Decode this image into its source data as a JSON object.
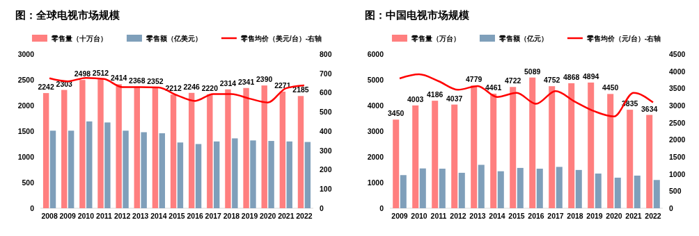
{
  "chart_data": [
    {
      "type": "bar",
      "title": "图：全球电视市场规模",
      "categories": [
        "2008",
        "2009",
        "2010",
        "2011",
        "2012",
        "2013",
        "2014",
        "2015",
        "2016",
        "2017",
        "2018",
        "2019",
        "2020",
        "2021",
        "2022"
      ],
      "legend": "top",
      "ylim": [
        0,
        3000
      ],
      "yticks": [
        0,
        500,
        1000,
        1500,
        2000,
        2500,
        3000
      ],
      "y2lim": [
        0,
        800
      ],
      "y2ticks": [
        0,
        100,
        200,
        300,
        400,
        500,
        600,
        700,
        800
      ],
      "series": [
        {
          "name": "零售量（十万台）",
          "color": "#ff7f7f",
          "values": [
            2242,
            2303,
            2498,
            2512,
            2414,
            2368,
            2352,
            2212,
            2246,
            2220,
            2314,
            2341,
            2390,
            2271,
            2185
          ],
          "value_labels": [
            "2242",
            "2303",
            "2498",
            "2512",
            "2414",
            "2368",
            "2352",
            "2212",
            "2246",
            "2220",
            "2314",
            "2341",
            "2390",
            "2271",
            "2185"
          ]
        },
        {
          "name": "零售额（亿美元）",
          "color": "#7f9fba",
          "values": [
            1510,
            1510,
            1690,
            1670,
            1510,
            1480,
            1460,
            1280,
            1250,
            1300,
            1360,
            1320,
            1310,
            1300,
            1290
          ]
        },
        {
          "name": "零售均价（美元/台）-右轴",
          "type": "line",
          "axis": "y2",
          "color": "#ff0000",
          "marker": "none",
          "values": [
            675,
            659,
            677,
            671,
            629,
            629,
            627,
            587,
            557,
            593,
            593,
            569,
            549,
            623,
            638
          ]
        }
      ]
    },
    {
      "type": "bar",
      "title": "图：中国电视市场规模",
      "categories": [
        "2009",
        "2010",
        "2011",
        "2012",
        "2013",
        "2014",
        "2015",
        "2016",
        "2017",
        "2018",
        "2019",
        "2020",
        "2021",
        "2022"
      ],
      "legend": "top",
      "ylim": [
        0,
        6000
      ],
      "yticks": [
        0,
        1000,
        2000,
        3000,
        4000,
        5000,
        6000
      ],
      "y2lim": [
        0,
        4500
      ],
      "y2ticks": [
        0,
        500,
        1000,
        1500,
        2000,
        2500,
        3000,
        3500,
        4000,
        4500
      ],
      "series": [
        {
          "name": "零售量（万台）",
          "color": "#ff7f7f",
          "values": [
            3450,
            4003,
            4186,
            4037,
            4779,
            4461,
            4722,
            5089,
            4752,
            4868,
            4894,
            4450,
            3835,
            3634
          ],
          "value_labels": [
            "3450",
            "4003",
            "4186",
            "4037",
            "4779",
            "4461",
            "4722",
            "5089",
            "4752",
            "4868",
            "4894",
            "4450",
            "3835",
            "3634"
          ]
        },
        {
          "name": "零售额（亿元）",
          "color": "#7f9fba",
          "values": [
            1290,
            1550,
            1540,
            1380,
            1690,
            1440,
            1570,
            1540,
            1610,
            1490,
            1350,
            1190,
            1270,
            1100
          ]
        },
        {
          "name": "零售均价（元/台）-右轴",
          "type": "line",
          "axis": "y2",
          "color": "#ff0000",
          "marker": "none",
          "values": [
            3790,
            3910,
            3710,
            3460,
            3570,
            3250,
            3370,
            3050,
            3420,
            3110,
            2830,
            2680,
            3370,
            3090
          ]
        }
      ]
    }
  ]
}
